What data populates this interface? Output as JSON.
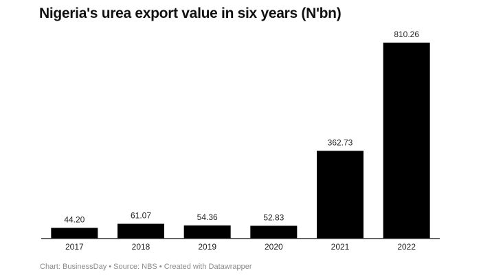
{
  "chart_data": {
    "type": "bar",
    "title": "Nigeria's urea export value in six years (N'bn)",
    "categories": [
      "2017",
      "2018",
      "2019",
      "2020",
      "2021",
      "2022"
    ],
    "values": [
      44.2,
      61.07,
      54.36,
      52.83,
      362.73,
      810.26
    ],
    "value_labels": [
      "44.20",
      "61.07",
      "54.36",
      "52.83",
      "362.73",
      "810.26"
    ],
    "xlabel": "",
    "ylabel": "",
    "ylim": [
      0,
      810.26
    ],
    "grid": false,
    "bar_color": "#000000",
    "axis_color": "#333333"
  },
  "footer": "Chart: BusinessDay • Source: NBS • Created with Datawrapper"
}
